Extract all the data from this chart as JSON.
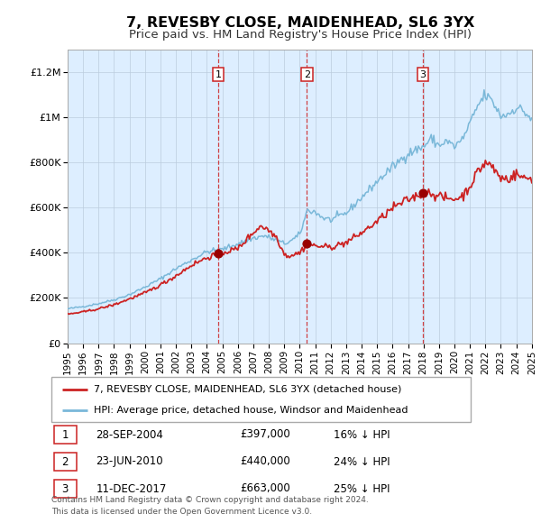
{
  "title": "7, REVESBY CLOSE, MAIDENHEAD, SL6 3YX",
  "subtitle": "Price paid vs. HM Land Registry's House Price Index (HPI)",
  "ylabel_ticks": [
    "£0",
    "£200K",
    "£400K",
    "£600K",
    "£800K",
    "£1M",
    "£1.2M"
  ],
  "ytick_values": [
    0,
    200000,
    400000,
    600000,
    800000,
    1000000,
    1200000
  ],
  "ylim": [
    0,
    1300000
  ],
  "sale_labels": [
    "1",
    "2",
    "3"
  ],
  "sale_years_float": [
    2004.747,
    2010.472,
    2017.942
  ],
  "sale_prices": [
    397000,
    440000,
    663000
  ],
  "legend_labels": [
    "7, REVESBY CLOSE, MAIDENHEAD, SL6 3YX (detached house)",
    "HPI: Average price, detached house, Windsor and Maidenhead"
  ],
  "table_entries": [
    {
      "label": "1",
      "date": "28-SEP-2004",
      "price": "£397,000",
      "pct": "16% ↓ HPI"
    },
    {
      "label": "2",
      "date": "23-JUN-2010",
      "price": "£440,000",
      "pct": "24% ↓ HPI"
    },
    {
      "label": "3",
      "date": "11-DEC-2017",
      "price": "£663,000",
      "pct": "25% ↓ HPI"
    }
  ],
  "footnote1": "Contains HM Land Registry data © Crown copyright and database right 2024.",
  "footnote2": "This data is licensed under the Open Government Licence v3.0.",
  "hpi_color": "#7ab8d9",
  "price_color": "#cc2222",
  "sale_dot_color": "#990000",
  "vline_color": "#cc2222",
  "box_color": "#cc2222",
  "shaded_color": "#ddeeff",
  "background_color": "#ffffff",
  "grid_color": "#bbccdd",
  "title_fontsize": 11.5,
  "subtitle_fontsize": 9.5,
  "tick_fontsize": 8,
  "legend_fontsize": 8,
  "table_fontsize": 8.5,
  "footnote_fontsize": 6.5
}
